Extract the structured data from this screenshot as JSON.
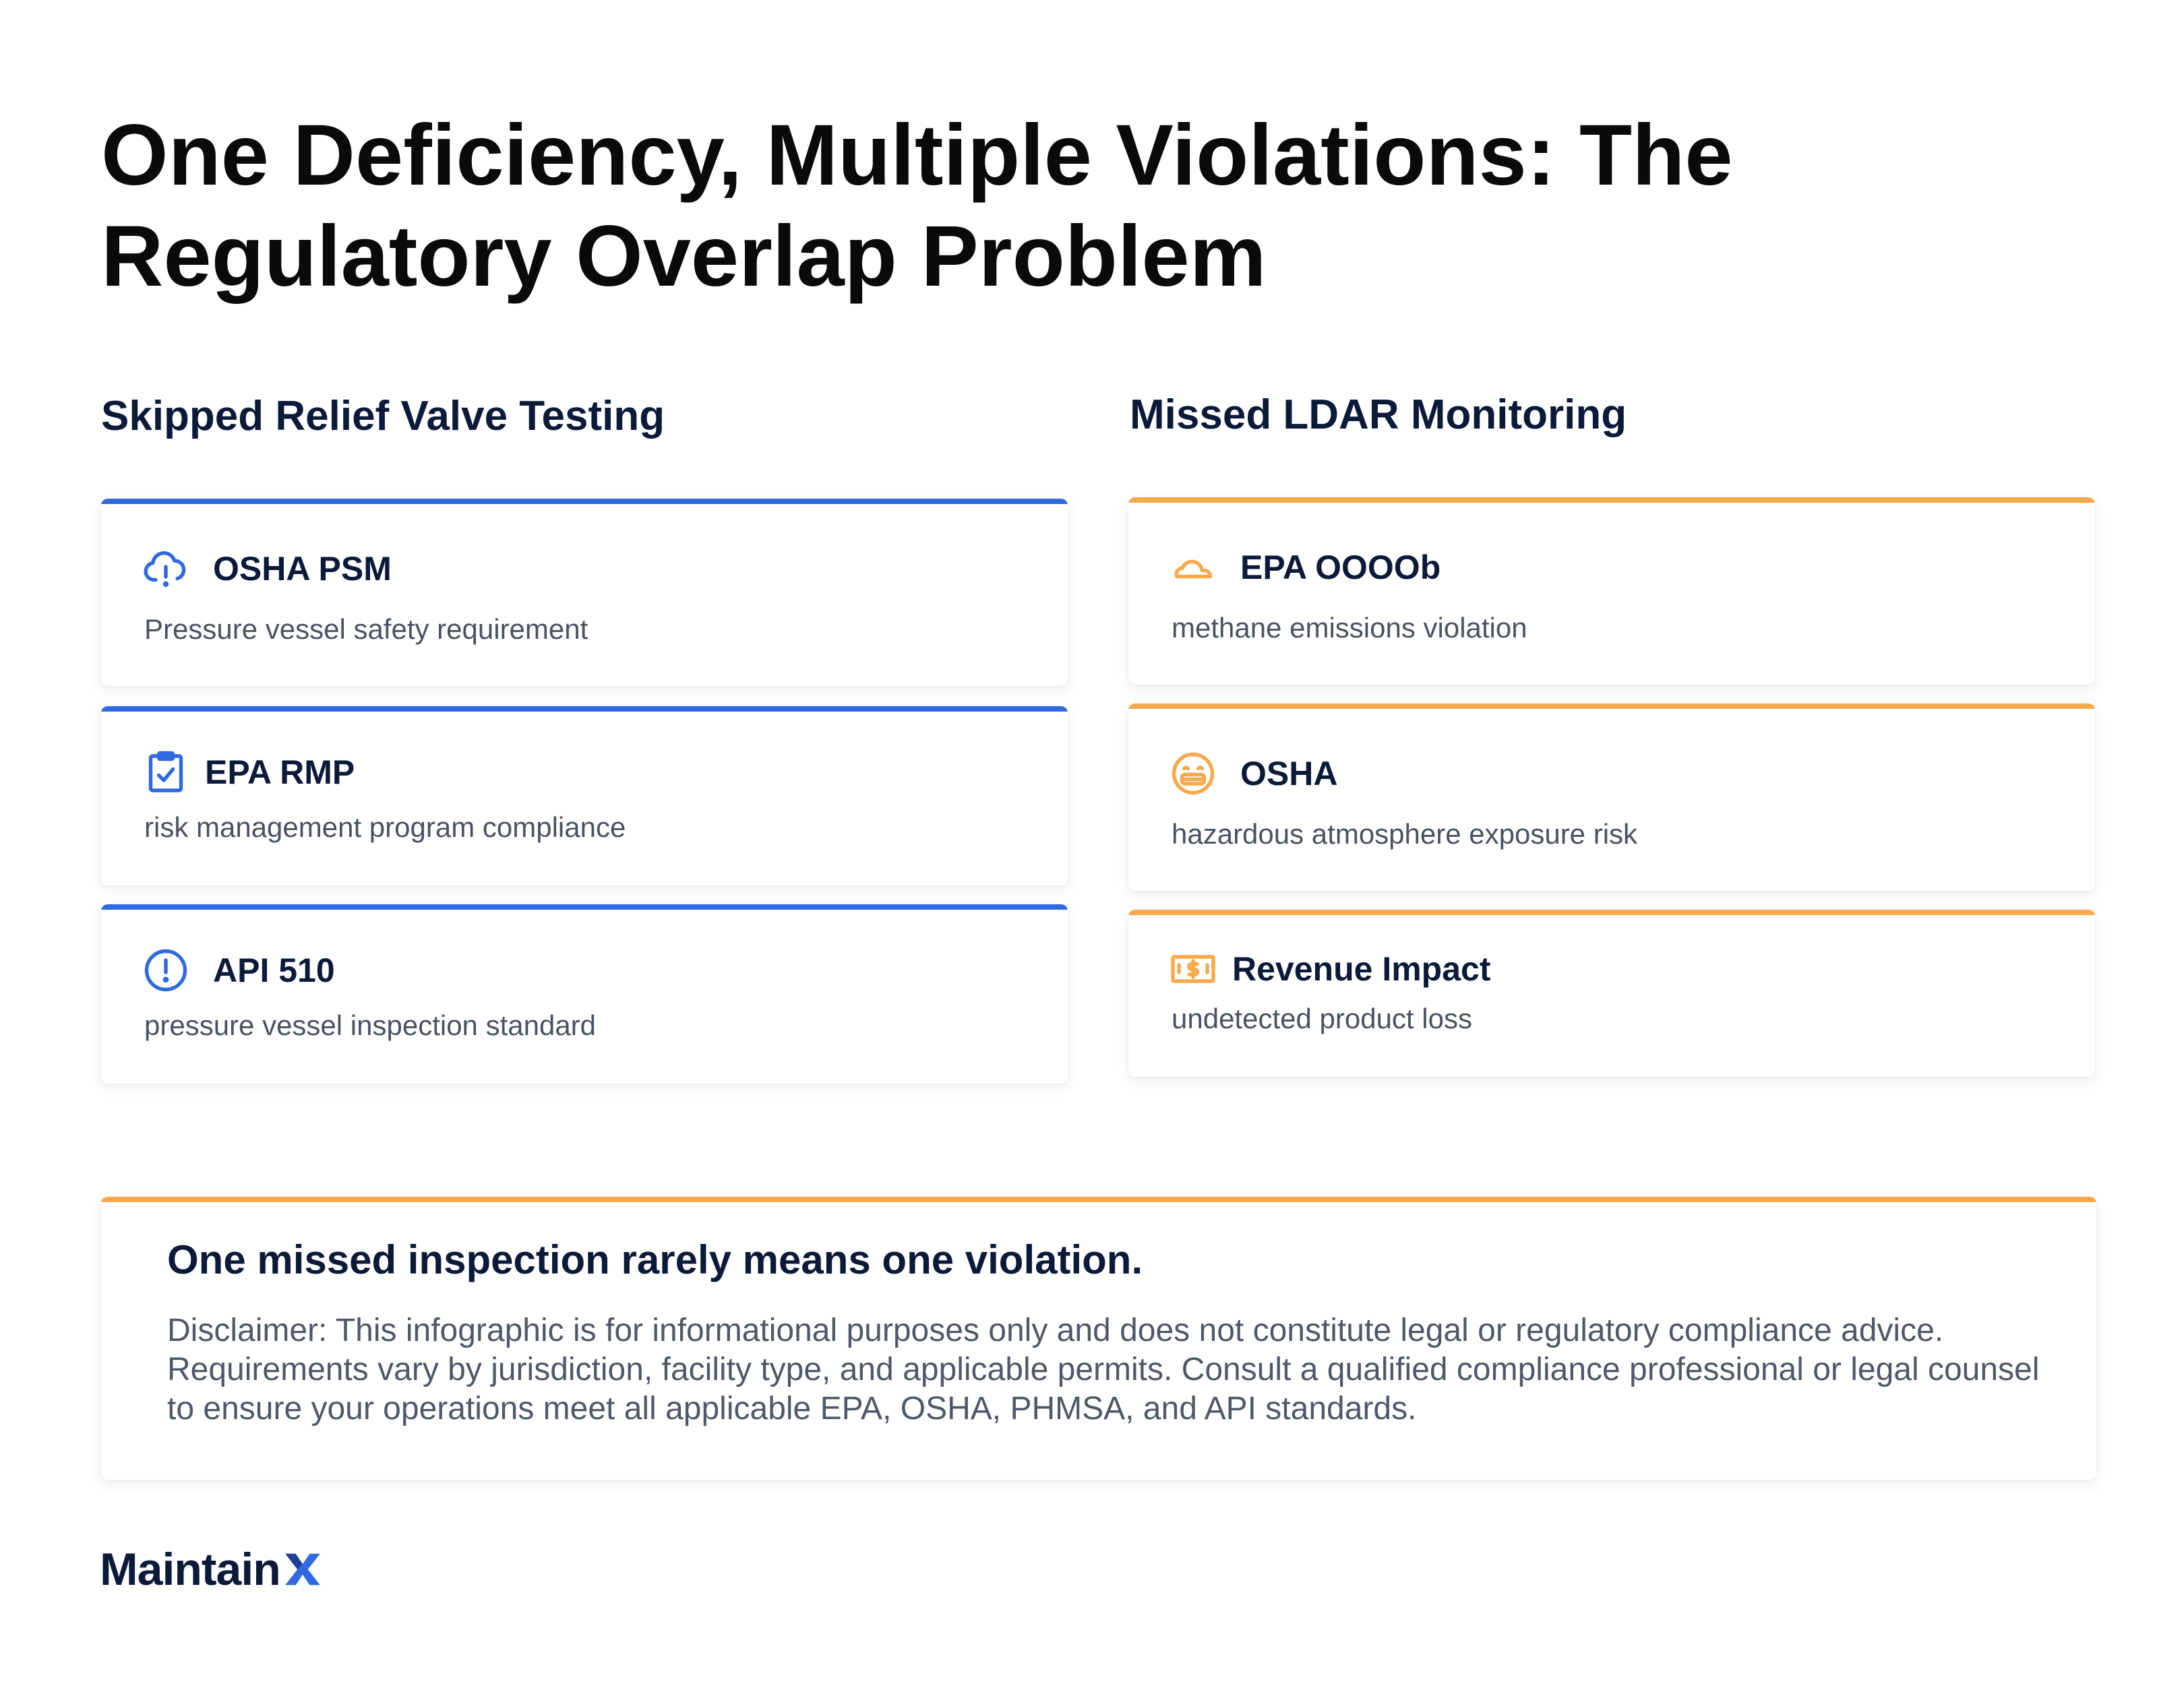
{
  "title": "One Deficiency, Multiple Violations: The Regulatory Overlap Problem",
  "columns": {
    "left": {
      "heading": "Skipped Relief Valve Testing",
      "accent": "#2f6ae0",
      "items": [
        {
          "title": "OSHA PSM",
          "description": "Pressure vessel safety requirement",
          "icon": "cloud-alert-icon"
        },
        {
          "title": "EPA RMP",
          "description": "risk management program compliance",
          "icon": "clipboard-check-icon"
        },
        {
          "title": "API 510",
          "description": "pressure vessel inspection standard",
          "icon": "exclamation-circle-icon"
        }
      ]
    },
    "right": {
      "heading": "Missed LDAR Monitoring",
      "accent": "#f7a94b",
      "items": [
        {
          "title": "EPA OOOOb",
          "description": "methane emissions violation",
          "icon": "cloud-icon"
        },
        {
          "title": "OSHA",
          "description": "hazardous atmosphere exposure risk",
          "icon": "mask-face-icon"
        },
        {
          "title": "Revenue Impact",
          "description": "undetected product loss",
          "icon": "dollar-bill-icon"
        }
      ]
    }
  },
  "summary": {
    "heading": "One missed inspection rarely means one violation.",
    "disclaimer": "Disclaimer: This infographic is for informational purposes only and does not constitute legal or regulatory compliance advice. Requirements vary by jurisdiction, facility type, and applicable permits. Consult a qualified compliance professional or legal counsel to ensure your operations meet all applicable EPA, OSHA, PHMSA, and API standards."
  },
  "logo": {
    "text": "Maintain",
    "mark_color": "#2f6ae0"
  }
}
